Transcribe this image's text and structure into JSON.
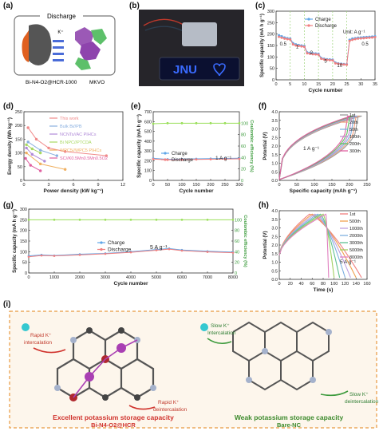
{
  "panels": {
    "a": {
      "label": "(a)",
      "discharge_label": "Discharge",
      "ion_label": "K⁺",
      "anode_label": "Bi-N4-O2@HCR-1000",
      "cathode_label": "MKVO"
    },
    "b": {
      "label": "(b)",
      "display_text": "JNU",
      "display_color": "#3a6bff"
    },
    "i": {
      "label": "(i)",
      "left_title": "Excellent potassium storage capacity",
      "left_subtitle": "Bi-N4-O2@HCR",
      "right_title": "Weak potassium storage capacity",
      "right_subtitle": "Bare-NC",
      "rapid_intercalation": "Rapid K⁺\nintercalation",
      "rapid_deintercalation": "Rapid K⁺\ndeintercalation",
      "slow_intercalation": "Slow K⁺\nintercalation",
      "slow_deintercalation": "Slow K⁺\ndeintercalation"
    }
  },
  "chart_data": [
    {
      "id": "c",
      "label": "(c)",
      "type": "scatter",
      "xlabel": "Cycle number",
      "ylabel": "Specific capacity (mA h g⁻¹)",
      "xlim": [
        0,
        35
      ],
      "ylim": [
        0,
        300
      ],
      "xticks": [
        0,
        5,
        10,
        15,
        20,
        25,
        30,
        35
      ],
      "yticks": [
        0,
        50,
        100,
        150,
        200,
        250,
        300
      ],
      "unit_note": "Unit: A g⁻¹",
      "rate_labels": [
        {
          "text": "0.5",
          "x": 2.5,
          "y": 150
        },
        {
          "text": "1",
          "x": 7.5,
          "y": 138
        },
        {
          "text": "2",
          "x": 12.5,
          "y": 112
        },
        {
          "text": "5",
          "x": 17.5,
          "y": 75
        },
        {
          "text": "10",
          "x": 22.5,
          "y": 55
        },
        {
          "text": "0.5",
          "x": 31.5,
          "y": 150
        }
      ],
      "series": [
        {
          "name": "Charge",
          "color": "#5fa6e8",
          "x": [
            1,
            2,
            3,
            4,
            5,
            6,
            7,
            8,
            9,
            10,
            11,
            12,
            13,
            14,
            15,
            16,
            17,
            18,
            19,
            20,
            21,
            22,
            23,
            24,
            25,
            26,
            27,
            28,
            29,
            30,
            31,
            32,
            33,
            34,
            35
          ],
          "y": [
            195,
            190,
            185,
            182,
            180,
            160,
            155,
            152,
            150,
            148,
            120,
            118,
            116,
            115,
            114,
            95,
            92,
            90,
            89,
            88,
            75,
            72,
            70,
            69,
            68,
            175,
            180,
            182,
            184,
            185,
            186,
            187,
            188,
            189,
            190
          ]
        },
        {
          "name": "Discharge",
          "color": "#f08080",
          "x": [
            1,
            2,
            3,
            4,
            5,
            6,
            7,
            8,
            9,
            10,
            11,
            12,
            13,
            14,
            15,
            16,
            17,
            18,
            19,
            20,
            21,
            22,
            23,
            24,
            25,
            26,
            27,
            28,
            29,
            30,
            31,
            32,
            33,
            34,
            35
          ],
          "y": [
            188,
            184,
            180,
            178,
            176,
            155,
            150,
            148,
            146,
            144,
            116,
            114,
            112,
            111,
            110,
            92,
            89,
            87,
            86,
            85,
            72,
            70,
            68,
            67,
            66,
            170,
            175,
            178,
            180,
            181,
            182,
            183,
            184,
            185,
            186
          ]
        }
      ]
    },
    {
      "id": "d",
      "label": "(d)",
      "type": "line",
      "xlabel": "Power density (kW kg⁻¹)",
      "ylabel": "Energy density (Wh kg⁻¹)",
      "xlim": [
        0,
        12
      ],
      "ylim": [
        0,
        250
      ],
      "xticks": [
        0,
        3,
        6,
        9,
        12
      ],
      "yticks": [
        0,
        50,
        100,
        150,
        200,
        250
      ],
      "series": [
        {
          "name": "This work",
          "color": "#f08a8a",
          "x": [
            0.5,
            1.5,
            3,
            5,
            10
          ],
          "y": [
            192,
            150,
            118,
            105,
            90
          ]
        },
        {
          "name": "Bulk Bi//PB",
          "color": "#8ab0e0",
          "x": [
            0.5,
            2,
            4
          ],
          "y": [
            140,
            110,
            90
          ]
        },
        {
          "name": "NCNTs//AC PIHCs",
          "color": "#b08ad8",
          "x": [
            0.3,
            1,
            2.5
          ],
          "y": [
            118,
            95,
            70
          ]
        },
        {
          "name": "Bi NPC//PTCDA",
          "color": "#a8d860",
          "x": [
            0.3,
            1,
            2
          ],
          "y": [
            130,
            115,
            100
          ]
        },
        {
          "name": "WPC5//WPC5 PIHCs",
          "color": "#f0b060",
          "x": [
            0.3,
            2,
            5
          ],
          "y": [
            100,
            60,
            40
          ]
        },
        {
          "name": "SC//K0.5Mn0.5Mn0.5O2",
          "color": "#e060a0",
          "x": [
            0.2,
            0.8,
            2
          ],
          "y": [
            80,
            55,
            35
          ]
        }
      ]
    },
    {
      "id": "e",
      "label": "(e)",
      "type": "scatter",
      "xlabel": "Cycle number",
      "ylabel": "Specific capacity (mA h g⁻¹)",
      "y2label": "Coulombic efficiency (%)",
      "xlim": [
        0,
        300
      ],
      "ylim": [
        0,
        700
      ],
      "y2lim": [
        0,
        120
      ],
      "xticks": [
        0,
        50,
        100,
        150,
        200,
        250,
        300
      ],
      "yticks": [
        0,
        100,
        200,
        300,
        400,
        500,
        600,
        700
      ],
      "y2ticks": [
        0,
        20,
        40,
        60,
        80,
        100
      ],
      "annotation": "1 A g⁻¹",
      "series": [
        {
          "name": "Charge",
          "color": "#5fa6e8",
          "x": [
            0,
            50,
            100,
            150,
            200,
            250,
            300
          ],
          "y": [
            225,
            215,
            218,
            220,
            222,
            224,
            226
          ]
        },
        {
          "name": "Discharge",
          "color": "#f08080",
          "x": [
            0,
            50,
            100,
            150,
            200,
            250,
            300
          ],
          "y": [
            218,
            210,
            212,
            214,
            216,
            218,
            220
          ]
        },
        {
          "name": "Coulombic efficiency",
          "axis": "y2",
          "color": "#9adf5a",
          "x": [
            0,
            50,
            100,
            150,
            200,
            250,
            300
          ],
          "y": [
            99,
            100,
            100,
            100,
            100,
            100,
            100
          ]
        }
      ]
    },
    {
      "id": "f",
      "label": "(f)",
      "type": "line",
      "xlabel": "Specific capacity (mAh g⁻¹)",
      "ylabel": "Potential (V)",
      "xlim": [
        0,
        250
      ],
      "ylim": [
        0.0,
        4.0
      ],
      "xticks": [
        0,
        50,
        100,
        150,
        200,
        250
      ],
      "yticks": [
        0.0,
        0.5,
        1.0,
        1.5,
        2.0,
        2.5,
        3.0,
        3.5,
        4.0
      ],
      "annotation": "1 A g⁻¹",
      "legend": [
        "1st",
        "20th",
        "50th",
        "100th",
        "200th",
        "300th"
      ],
      "colors": [
        "#9a9a9a",
        "#f0a080",
        "#80b0e0",
        "#c090d0",
        "#60c060",
        "#e060a0"
      ]
    },
    {
      "id": "g",
      "label": "(g)",
      "type": "scatter",
      "xlabel": "Cycle number",
      "ylabel": "Specific capacity (mA h g⁻¹)",
      "y2label": "Coulombic efficiency (%)",
      "xlim": [
        0,
        8000
      ],
      "ylim": [
        0,
        300
      ],
      "y2lim": [
        0,
        120
      ],
      "xticks": [
        0,
        1000,
        2000,
        3000,
        4000,
        5000,
        6000,
        7000,
        8000
      ],
      "yticks": [
        0,
        50,
        100,
        150,
        200,
        250,
        300
      ],
      "y2ticks": [
        0,
        20,
        40,
        60,
        80,
        100
      ],
      "annotation": "5 A g⁻¹",
      "series": [
        {
          "name": "Charge",
          "color": "#5fa6e8",
          "x": [
            0,
            500,
            1000,
            2000,
            3000,
            4000,
            5000,
            5500,
            6000,
            7000,
            8000
          ],
          "y": [
            80,
            85,
            82,
            88,
            92,
            100,
            110,
            115,
            108,
            102,
            98
          ]
        },
        {
          "name": "Discharge",
          "color": "#f08080",
          "x": [
            0,
            500,
            1000,
            2000,
            3000,
            4000,
            5000,
            5500,
            6000,
            7000,
            8000
          ],
          "y": [
            76,
            82,
            80,
            85,
            90,
            97,
            107,
            112,
            105,
            99,
            95
          ]
        },
        {
          "name": "Coulombic efficiency",
          "axis": "y2",
          "color": "#9adf5a",
          "x": [
            0,
            1000,
            2000,
            3000,
            4000,
            5000,
            6000,
            7000,
            8000
          ],
          "y": [
            100,
            100,
            100,
            100,
            100,
            100,
            100,
            100,
            100
          ]
        }
      ]
    },
    {
      "id": "h",
      "label": "(h)",
      "type": "line",
      "xlabel": "Time (s)",
      "ylabel": "Potential (V)",
      "xlim": [
        0,
        160
      ],
      "ylim": [
        0.0,
        4.0
      ],
      "xticks": [
        0,
        20,
        40,
        60,
        80,
        100,
        120,
        140,
        160
      ],
      "yticks": [
        0.0,
        0.5,
        1.0,
        1.5,
        2.0,
        2.5,
        3.0,
        3.5,
        4.0
      ],
      "annotation": "5 A g⁻¹",
      "legend": [
        "1st",
        "500th",
        "1000th",
        "2000th",
        "3000th",
        "5000th",
        "8000th"
      ],
      "colors": [
        "#f08080",
        "#f0a050",
        "#c0a0e0",
        "#80b0e0",
        "#60c090",
        "#a0d060",
        "#e080c0"
      ]
    }
  ]
}
